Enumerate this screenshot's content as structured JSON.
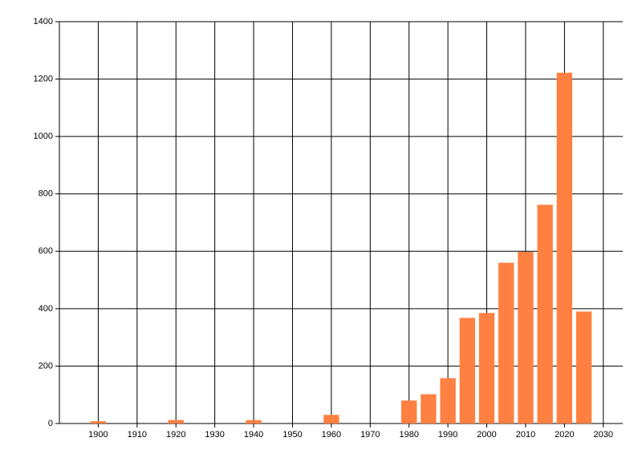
{
  "chart_data": {
    "type": "bar",
    "x": [
      1900,
      1920,
      1940,
      1960,
      1980,
      1985,
      1990,
      1995,
      2000,
      2005,
      2010,
      2015,
      2020,
      2025
    ],
    "values": [
      8,
      12,
      12,
      30,
      80,
      102,
      158,
      368,
      385,
      560,
      598,
      762,
      1222,
      390
    ],
    "color": "#ff8040",
    "xlim": [
      1890,
      2035
    ],
    "xticks": [
      1900,
      1910,
      1920,
      1930,
      1940,
      1950,
      1960,
      1970,
      1980,
      1990,
      2000,
      2010,
      2020,
      2030
    ],
    "ylim": [
      0,
      1400
    ],
    "yticks": [
      0,
      200,
      400,
      600,
      800,
      1000,
      1200,
      1400
    ],
    "grid": true
  }
}
